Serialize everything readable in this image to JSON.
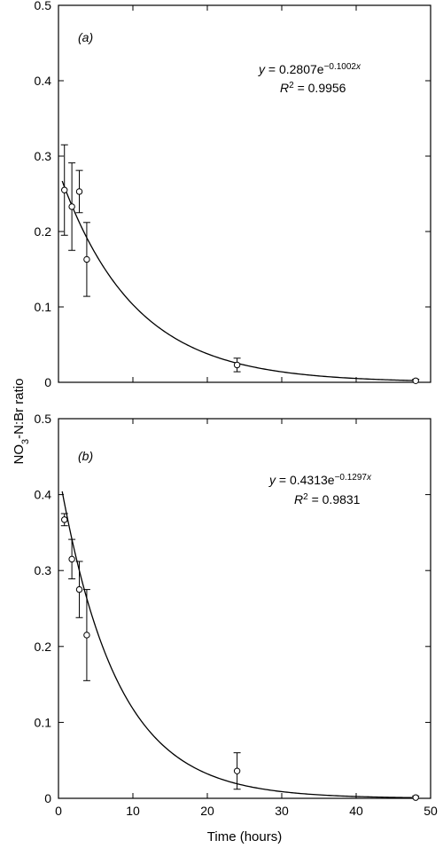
{
  "figure": {
    "ylabel_main": "NO",
    "ylabel_sub": "3",
    "ylabel_rest": "-N:Br ratio",
    "xlabel": "Time (hours)"
  },
  "chart_data": [
    {
      "type": "scatter",
      "panel_label": "a",
      "xlim": [
        0,
        50
      ],
      "ylim": [
        0,
        0.5
      ],
      "x_ticks": [
        0,
        10,
        20,
        30,
        40,
        50
      ],
      "y_ticks": [
        0,
        0.1,
        0.2,
        0.3,
        0.4,
        0.5
      ],
      "y_tick_labels": [
        "0",
        "0.1",
        "0.2",
        "0.3",
        "0.4",
        "0.5"
      ],
      "show_x_tick_labels": false,
      "series": [
        {
          "x": [
            0.8,
            1.8,
            2.8,
            3.8,
            24,
            48
          ],
          "y": [
            0.255,
            0.233,
            0.253,
            0.163,
            0.023,
            0.002
          ],
          "err": [
            0.06,
            0.058,
            0.028,
            0.049,
            0.009,
            0.002
          ]
        }
      ],
      "fit": {
        "a": 0.2807,
        "b": 0.1002,
        "x_range": [
          0.5,
          48
        ]
      },
      "equation": {
        "lhs": "y",
        "eq": " = 0.2807e",
        "exp": "−0.1002",
        "exp_var": "x"
      },
      "r2": {
        "r": "R",
        "sup": "2",
        "value": " = 0.9956"
      }
    },
    {
      "type": "scatter",
      "panel_label": "b",
      "xlim": [
        0,
        50
      ],
      "ylim": [
        0,
        0.5
      ],
      "x_ticks": [
        0,
        10,
        20,
        30,
        40,
        50
      ],
      "x_tick_labels": [
        "0",
        "10",
        "20",
        "30",
        "40",
        "50"
      ],
      "y_ticks": [
        0,
        0.1,
        0.2,
        0.3,
        0.4,
        0.5
      ],
      "y_tick_labels": [
        "0",
        "0.1",
        "0.2",
        "0.3",
        "0.4",
        "0.5"
      ],
      "show_x_tick_labels": true,
      "series": [
        {
          "x": [
            0.8,
            1.8,
            2.8,
            3.8,
            24,
            48
          ],
          "y": [
            0.367,
            0.315,
            0.275,
            0.215,
            0.036,
            0.001
          ],
          "err": [
            0.008,
            0.026,
            0.037,
            0.06,
            0.024,
            0.002
          ]
        }
      ],
      "fit": {
        "a": 0.4313,
        "b": 0.1297,
        "x_range": [
          0.5,
          48
        ]
      },
      "equation": {
        "lhs": "y",
        "eq": " = 0.4313e",
        "exp": "−0.1297",
        "exp_var": "x"
      },
      "r2": {
        "r": "R",
        "sup": "2",
        "value": " = 0.9831"
      }
    }
  ]
}
